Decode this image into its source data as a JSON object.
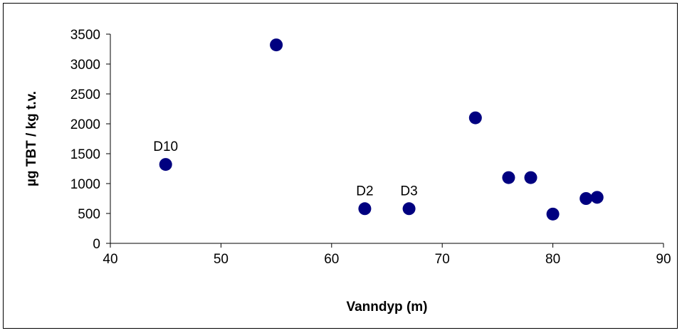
{
  "chart_data": {
    "type": "scatter",
    "title": "",
    "xlabel": "Vanndyp (m)",
    "ylabel": "µg TBT / kg t.v.",
    "xlim": [
      40,
      90
    ],
    "ylim": [
      0,
      3500
    ],
    "xticks": [
      40,
      50,
      60,
      70,
      80,
      90
    ],
    "yticks": [
      0,
      500,
      1000,
      1500,
      2000,
      2500,
      3000,
      3500
    ],
    "grid": false,
    "legend": "none",
    "marker_color": "#000080",
    "points": [
      {
        "x": 45,
        "y": 1320,
        "label": "D10"
      },
      {
        "x": 55,
        "y": 3320,
        "label": ""
      },
      {
        "x": 63,
        "y": 580,
        "label": "D2"
      },
      {
        "x": 67,
        "y": 580,
        "label": "D3"
      },
      {
        "x": 73,
        "y": 2100,
        "label": ""
      },
      {
        "x": 76,
        "y": 1100,
        "label": ""
      },
      {
        "x": 78,
        "y": 1100,
        "label": ""
      },
      {
        "x": 80,
        "y": 490,
        "label": ""
      },
      {
        "x": 83,
        "y": 750,
        "label": ""
      },
      {
        "x": 84,
        "y": 770,
        "label": ""
      }
    ]
  }
}
